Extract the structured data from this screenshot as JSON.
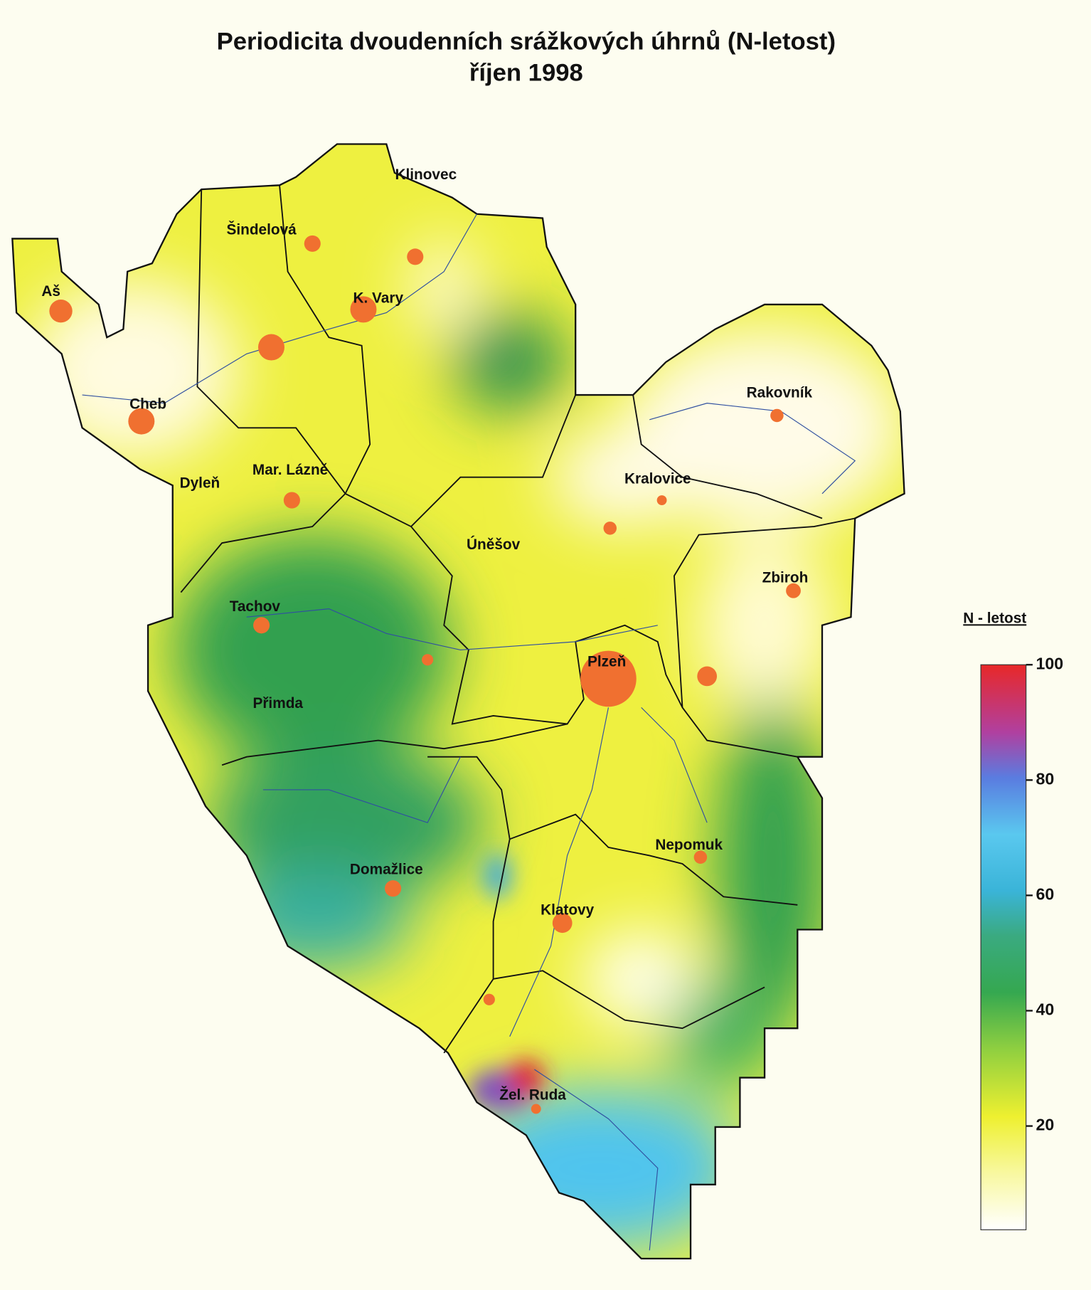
{
  "title": "Periodicita dvoudenních srážkových úhrnů (N-letost)",
  "subtitle": "říjen 1998",
  "places": [
    "Klinovec",
    "Šindelová",
    "Aš",
    "K. Vary",
    "Cheb",
    "Mar. Lázně",
    "Dyleň",
    "Rakovník",
    "Kralovice",
    "Úněšov",
    "Zbiroh",
    "Tachov",
    "Plzeň",
    "Přimda",
    "Nepomuk",
    "Domažlice",
    "Klatovy",
    "Žel. Ruda"
  ],
  "legend": {
    "title": "N - letost",
    "range": [
      2,
      100
    ],
    "ticks": [
      100,
      80,
      60,
      40,
      20
    ]
  }
}
